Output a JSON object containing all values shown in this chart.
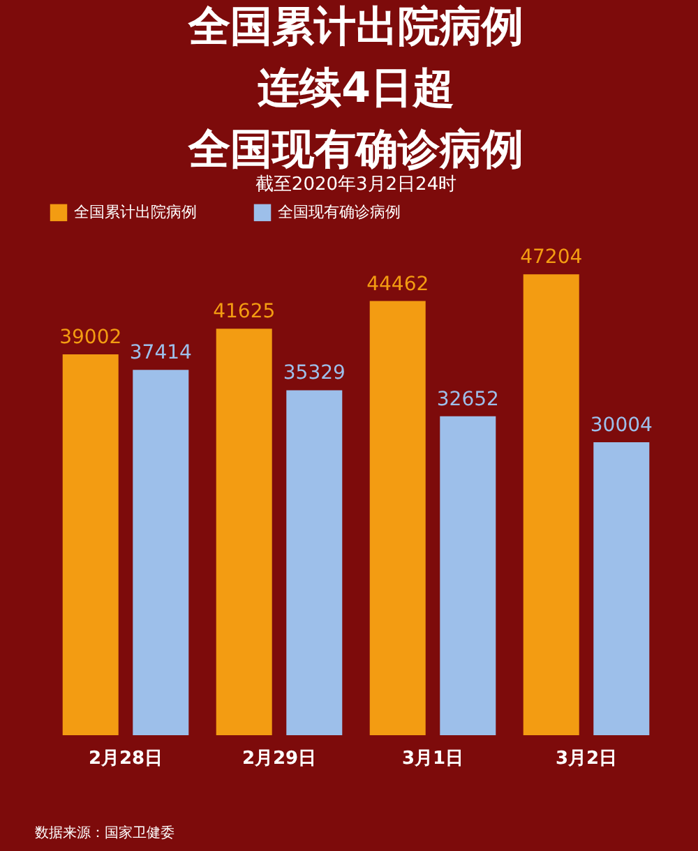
{
  "chart_data": {
    "type": "bar",
    "title": "全国累计出院病例",
    "subtitle": "截至2020年3月2日24时",
    "categories": [
      "2月28日",
      "2月29日",
      "3月1日",
      "3月2日"
    ],
    "series": [
      {
        "name": "全国累计出院病例",
        "color": "#f39c12",
        "values": [
          39002,
          41625,
          44462,
          47204
        ]
      },
      {
        "name": "全国现有确诊病例",
        "color": "#9dbfea",
        "values": [
          37414,
          35329,
          32652,
          30004
        ]
      }
    ],
    "data_labels": true,
    "legend": "top",
    "grid": false,
    "annotations": [
      "连续4日超",
      "全国现有确诊病例",
      "数据来源：国家卫健委"
    ]
  }
}
